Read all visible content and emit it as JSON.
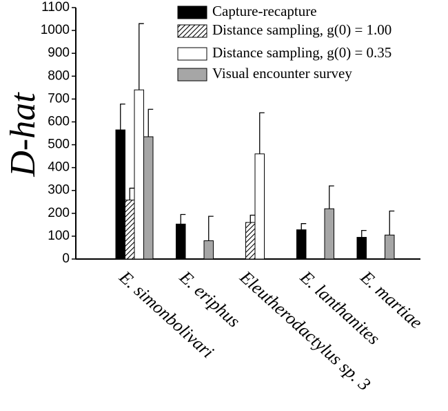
{
  "chart_data": {
    "type": "bar",
    "y_label": "D-hat",
    "categories": [
      "E. simonbolivari",
      "E. eriphus",
      "Eleutherodactylus sp. 3",
      "E. lanthanites",
      "E. martiae"
    ],
    "series": [
      {
        "name": "Capture-recapture",
        "color": "#000000",
        "values": [
          565,
          153,
          null,
          128,
          95
        ],
        "errors": [
          113,
          42,
          null,
          27,
          30
        ]
      },
      {
        "name": "Distance sampling, g(0) = 1.00",
        "color": "#ffffff",
        "pattern": "hatch",
        "values": [
          258,
          null,
          160,
          null,
          null
        ],
        "errors": [
          52,
          null,
          32,
          null,
          null
        ]
      },
      {
        "name": "Distance sampling, g(0) = 0.35",
        "color": "#ffffff",
        "values": [
          740,
          null,
          460,
          null,
          null
        ],
        "errors": [
          290,
          null,
          180,
          null,
          null
        ]
      },
      {
        "name": "Visual encounter survey",
        "color": "#a6a6a6",
        "values": [
          535,
          80,
          null,
          220,
          105
        ],
        "errors": [
          120,
          107,
          null,
          100,
          105
        ]
      }
    ],
    "ylim": [
      0,
      1100
    ],
    "yticks": [
      0,
      100,
      200,
      300,
      400,
      500,
      600,
      700,
      800,
      900,
      1000,
      1100
    ],
    "legend": "upper right"
  }
}
